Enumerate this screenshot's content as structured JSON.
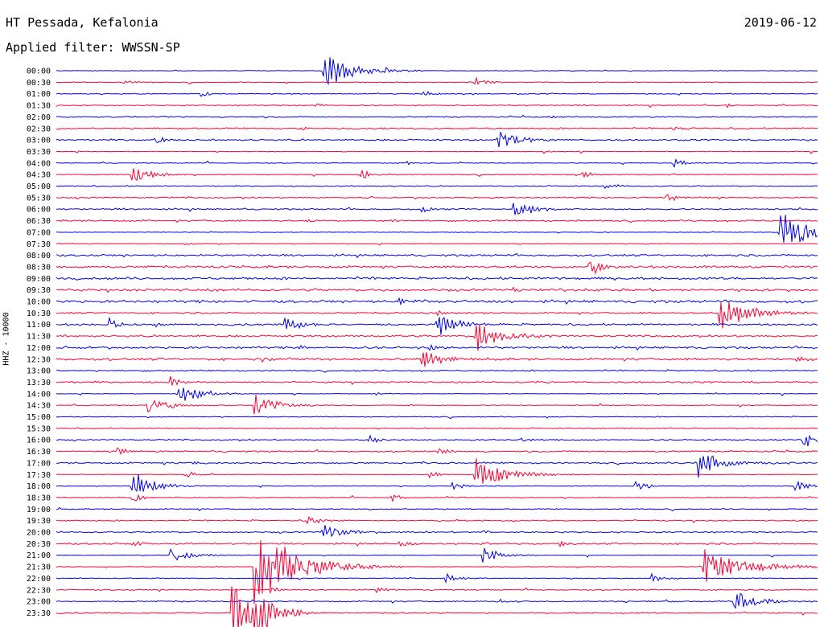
{
  "header": {
    "station": "HT Pessada, Kefalonia",
    "filter": "Applied filter: WWSSN-SP",
    "date": "2019-06-12"
  },
  "chart_data": {
    "type": "line",
    "plot_kind": "helicorder",
    "ylabel": "HHZ - 10000",
    "colors": {
      "even_row": "#0000ee",
      "odd_row": "#ff0033"
    },
    "rows": [
      {
        "label": "00:00",
        "events": [
          [
            0.35,
            1.0,
            9
          ]
        ]
      },
      {
        "label": "00:30",
        "events": [
          [
            0.09,
            0.15,
            3
          ],
          [
            0.55,
            0.25,
            4
          ]
        ]
      },
      {
        "label": "01:00",
        "events": [
          [
            0.19,
            0.2,
            3
          ],
          [
            0.48,
            0.25,
            3
          ]
        ]
      },
      {
        "label": "01:30",
        "events": [
          [
            0.34,
            0.2,
            2
          ],
          [
            0.88,
            0.15,
            2
          ]
        ]
      },
      {
        "label": "02:00",
        "events": [
          [
            0.65,
            0.12,
            2
          ]
        ]
      },
      {
        "label": "02:30",
        "events": [
          [
            0.32,
            0.12,
            2
          ],
          [
            0.81,
            0.15,
            3
          ]
        ]
      },
      {
        "label": "03:00",
        "events": [
          [
            0.13,
            0.3,
            3
          ],
          [
            0.58,
            0.75,
            6
          ]
        ]
      },
      {
        "label": "03:30",
        "events": [
          [
            0.64,
            0.12,
            2
          ]
        ]
      },
      {
        "label": "04:00",
        "events": [
          [
            0.46,
            0.12,
            2
          ],
          [
            0.81,
            0.35,
            3
          ]
        ]
      },
      {
        "label": "04:30",
        "events": [
          [
            0.1,
            0.6,
            5
          ],
          [
            0.4,
            0.35,
            3
          ],
          [
            0.69,
            0.25,
            3
          ]
        ]
      },
      {
        "label": "05:00",
        "events": [
          [
            0.72,
            0.2,
            3
          ]
        ]
      },
      {
        "label": "05:30",
        "events": [
          [
            0.8,
            0.35,
            3
          ]
        ]
      },
      {
        "label": "06:00",
        "events": [
          [
            0.48,
            0.25,
            3
          ],
          [
            0.6,
            0.6,
            5
          ]
        ]
      },
      {
        "label": "06:30",
        "events": [
          [
            0.33,
            0.12,
            2
          ],
          [
            0.44,
            0.15,
            2
          ]
        ]
      },
      {
        "label": "07:00",
        "events": [
          [
            0.95,
            1.2,
            9
          ]
        ]
      },
      {
        "label": "07:30",
        "events": [
          [
            0.17,
            0.12,
            2
          ]
        ]
      },
      {
        "label": "08:00",
        "events": []
      },
      {
        "label": "08:30",
        "events": [
          [
            0.7,
            0.5,
            4
          ]
        ]
      },
      {
        "label": "09:00",
        "events": [
          [
            0.66,
            0.12,
            2
          ]
        ]
      },
      {
        "label": "09:30",
        "events": [
          [
            0.6,
            0.12,
            2
          ]
        ]
      },
      {
        "label": "10:00",
        "events": [
          [
            0.45,
            0.3,
            3
          ]
        ]
      },
      {
        "label": "10:30",
        "events": [
          [
            0.87,
            1.0,
            9
          ],
          [
            0.5,
            0.2,
            3
          ]
        ]
      },
      {
        "label": "11:00",
        "events": [
          [
            0.07,
            0.4,
            3
          ],
          [
            0.3,
            0.6,
            4
          ],
          [
            0.5,
            0.8,
            6
          ],
          [
            0.13,
            0.2,
            2
          ]
        ]
      },
      {
        "label": "11:30",
        "events": [
          [
            0.55,
            0.9,
            7
          ]
        ]
      },
      {
        "label": "12:00",
        "events": [
          [
            0.49,
            0.2,
            3
          ],
          [
            0.32,
            0.15,
            2
          ]
        ]
      },
      {
        "label": "12:30",
        "events": [
          [
            0.48,
            0.55,
            6
          ],
          [
            0.27,
            0.15,
            2
          ],
          [
            0.97,
            0.25,
            4
          ]
        ]
      },
      {
        "label": "13:00",
        "events": []
      },
      {
        "label": "13:30",
        "events": [
          [
            0.15,
            0.35,
            3
          ],
          [
            0.63,
            0.12,
            2
          ]
        ]
      },
      {
        "label": "14:00",
        "events": [
          [
            0.16,
            0.75,
            6
          ],
          [
            0.42,
            0.12,
            2
          ]
        ]
      },
      {
        "label": "14:30",
        "events": [
          [
            0.12,
            0.55,
            6
          ],
          [
            0.26,
            0.85,
            6
          ],
          [
            0.46,
            0.12,
            2
          ]
        ]
      },
      {
        "label": "15:00",
        "events": []
      },
      {
        "label": "15:30",
        "events": []
      },
      {
        "label": "16:00",
        "events": [
          [
            0.41,
            0.3,
            3
          ],
          [
            0.61,
            0.15,
            2
          ],
          [
            0.98,
            0.6,
            4
          ]
        ]
      },
      {
        "label": "16:30",
        "events": [
          [
            0.08,
            0.3,
            3
          ],
          [
            0.5,
            0.25,
            3
          ]
        ]
      },
      {
        "label": "17:00",
        "events": [
          [
            0.18,
            0.15,
            2
          ],
          [
            0.84,
            0.9,
            7
          ],
          [
            0.48,
            0.12,
            2
          ]
        ]
      },
      {
        "label": "17:30",
        "events": [
          [
            0.55,
            1.0,
            9
          ],
          [
            0.17,
            0.25,
            3
          ],
          [
            0.49,
            0.2,
            3
          ]
        ]
      },
      {
        "label": "18:00",
        "events": [
          [
            0.1,
            0.9,
            6
          ],
          [
            0.52,
            0.3,
            3
          ],
          [
            0.76,
            0.4,
            3
          ],
          [
            0.97,
            0.5,
            3
          ]
        ]
      },
      {
        "label": "18:30",
        "events": [
          [
            0.1,
            0.35,
            3
          ],
          [
            0.44,
            0.25,
            3
          ]
        ]
      },
      {
        "label": "19:00",
        "events": []
      },
      {
        "label": "19:30",
        "events": [
          [
            0.33,
            0.3,
            4
          ]
        ]
      },
      {
        "label": "20:00",
        "events": [
          [
            0.35,
            0.5,
            6
          ],
          [
            0.56,
            0.12,
            2
          ]
        ]
      },
      {
        "label": "20:30",
        "events": [
          [
            0.1,
            0.25,
            3
          ],
          [
            0.45,
            0.2,
            3
          ],
          [
            0.66,
            0.2,
            3
          ]
        ]
      },
      {
        "label": "21:00",
        "events": [
          [
            0.15,
            0.5,
            6
          ],
          [
            0.56,
            0.55,
            5
          ]
        ]
      },
      {
        "label": "21:30",
        "events": [
          [
            0.26,
            2.5,
            12
          ],
          [
            0.85,
            1.0,
            13
          ]
        ]
      },
      {
        "label": "22:00",
        "events": [
          [
            0.51,
            0.35,
            4
          ],
          [
            0.78,
            0.3,
            4
          ]
        ]
      },
      {
        "label": "22:30",
        "events": [
          [
            0.28,
            0.2,
            3
          ],
          [
            0.42,
            0.2,
            3
          ]
        ]
      },
      {
        "label": "23:00",
        "events": [
          [
            0.89,
            0.55,
            7
          ],
          [
            0.58,
            0.15,
            2
          ]
        ]
      },
      {
        "label": "23:30",
        "events": [
          [
            0.23,
            1.6,
            7
          ],
          [
            0.26,
            1.2,
            6
          ]
        ]
      }
    ]
  }
}
